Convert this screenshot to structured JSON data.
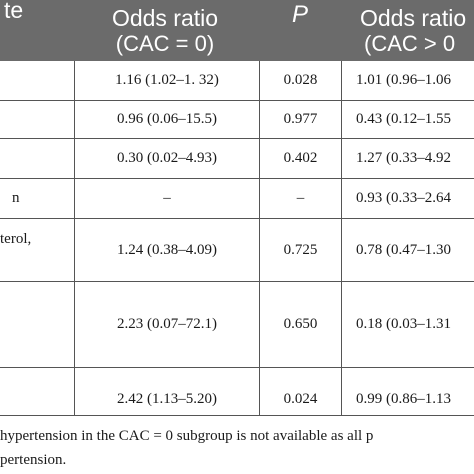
{
  "table": {
    "header": {
      "col0": "te",
      "col1_line1": "Odds ratio",
      "col1_line2": "(CAC = 0)",
      "col2": "P",
      "col3_line1": "Odds ratio",
      "col3_line2": "(CAC > 0"
    },
    "rows": [
      {
        "label": "",
        "or1": "1.16 (1.02–1. 32)",
        "p": "0.028",
        "or2": "1.01 (0.96–1.06"
      },
      {
        "label": "",
        "or1": "0.96 (0.06–15.5)",
        "p": "0.977",
        "or2": "0.43 (0.12–1.55"
      },
      {
        "label": "",
        "or1": "0.30 (0.02–4.93)",
        "p": "0.402",
        "or2": "1.27 (0.33–4.92"
      },
      {
        "label": "n",
        "or1": "–",
        "p": "–",
        "or2": "0.93 (0.33–2.64"
      },
      {
        "label": "terol,",
        "or1": "1.24 (0.38–4.09)",
        "p": "0.725",
        "or2": "0.78 (0.47–1.30"
      },
      {
        "label": "",
        "or1": "2.23 (0.07–72.1)",
        "p": "0.650",
        "or2": "0.18 (0.03–1.31"
      },
      {
        "label": "",
        "or1": "2.42 (1.13–5.20)",
        "p": "0.024",
        "or2": "0.99 (0.86–1.13"
      }
    ]
  },
  "footnote": {
    "line1": "hypertension in the CAC = 0 subgroup is not available as all p",
    "line2": "pertension."
  }
}
